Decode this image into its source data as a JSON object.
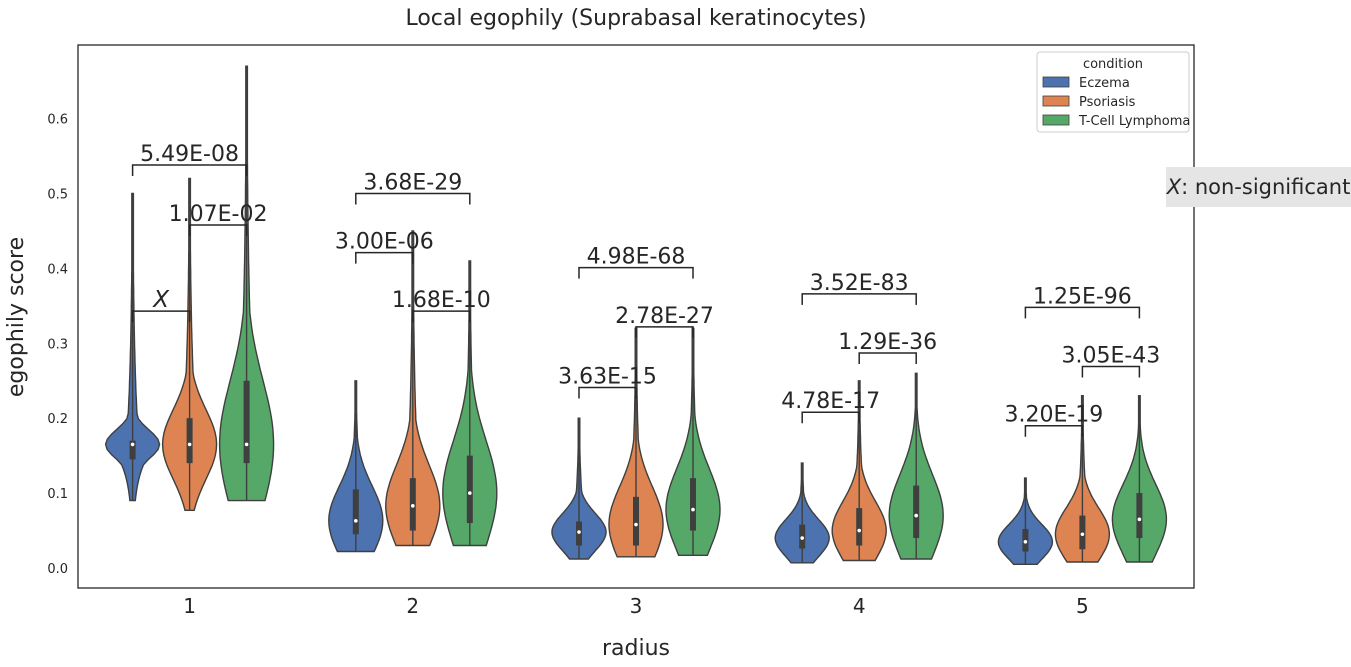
{
  "note": {
    "symbol": "X",
    "text": ": non-significant"
  },
  "chart_data": {
    "type": "violin",
    "title": "Local egophily (Suprabasal keratinocytes)",
    "xlabel": "radius",
    "ylabel": "egophily score",
    "categories": [
      "1",
      "2",
      "3",
      "4",
      "5"
    ],
    "ylim": [
      -0.03,
      0.7
    ],
    "yticks": [
      "0.0",
      "0.1",
      "0.2",
      "0.3",
      "0.4",
      "0.5",
      "0.6"
    ],
    "grid": false,
    "legend": {
      "title": "condition",
      "placement": "top-right"
    },
    "series": [
      {
        "name": "Eczema",
        "color": "#4c72b0",
        "stats": [
          {
            "min": 0.09,
            "q1": 0.145,
            "median": 0.165,
            "q3": 0.17,
            "max": 0.5
          },
          {
            "min": 0.022,
            "q1": 0.045,
            "median": 0.063,
            "q3": 0.105,
            "max": 0.25
          },
          {
            "min": 0.012,
            "q1": 0.03,
            "median": 0.048,
            "q3": 0.062,
            "max": 0.2
          },
          {
            "min": 0.007,
            "q1": 0.026,
            "median": 0.04,
            "q3": 0.058,
            "max": 0.14
          },
          {
            "min": 0.005,
            "q1": 0.022,
            "median": 0.035,
            "q3": 0.052,
            "max": 0.12
          }
        ]
      },
      {
        "name": "Psoriasis",
        "color": "#dd8452",
        "stats": [
          {
            "min": 0.077,
            "q1": 0.14,
            "median": 0.165,
            "q3": 0.2,
            "max": 0.52
          },
          {
            "min": 0.03,
            "q1": 0.05,
            "median": 0.083,
            "q3": 0.12,
            "max": 0.45
          },
          {
            "min": 0.015,
            "q1": 0.03,
            "median": 0.058,
            "q3": 0.095,
            "max": 0.32
          },
          {
            "min": 0.01,
            "q1": 0.03,
            "median": 0.05,
            "q3": 0.08,
            "max": 0.25
          },
          {
            "min": 0.008,
            "q1": 0.025,
            "median": 0.045,
            "q3": 0.07,
            "max": 0.23
          }
        ]
      },
      {
        "name": "T-Cell Lymphoma",
        "color": "#55a868",
        "stats": [
          {
            "min": 0.09,
            "q1": 0.14,
            "median": 0.165,
            "q3": 0.25,
            "max": 0.67
          },
          {
            "min": 0.03,
            "q1": 0.06,
            "median": 0.1,
            "q3": 0.15,
            "max": 0.41
          },
          {
            "min": 0.017,
            "q1": 0.05,
            "median": 0.078,
            "q3": 0.12,
            "max": 0.32
          },
          {
            "min": 0.012,
            "q1": 0.04,
            "median": 0.07,
            "q3": 0.11,
            "max": 0.26
          },
          {
            "min": 0.008,
            "q1": 0.04,
            "median": 0.065,
            "q3": 0.1,
            "max": 0.23
          }
        ]
      }
    ],
    "comparisons": [
      {
        "radius": "1",
        "from": 0,
        "to": 1,
        "label": "X",
        "y": 0.343
      },
      {
        "radius": "1",
        "from": 1,
        "to": 2,
        "label": "1.07E-02",
        "y": 0.458
      },
      {
        "radius": "1",
        "from": 0,
        "to": 2,
        "label": "5.49E-08",
        "y": 0.538
      },
      {
        "radius": "2",
        "from": 0,
        "to": 1,
        "label": "3.00E-06",
        "y": 0.421
      },
      {
        "radius": "2",
        "from": 1,
        "to": 2,
        "label": "1.68E-10",
        "y": 0.343
      },
      {
        "radius": "2",
        "from": 0,
        "to": 2,
        "label": "3.68E-29",
        "y": 0.5
      },
      {
        "radius": "3",
        "from": 0,
        "to": 1,
        "label": "3.63E-15",
        "y": 0.241
      },
      {
        "radius": "3",
        "from": 1,
        "to": 2,
        "label": "2.78E-27",
        "y": 0.322
      },
      {
        "radius": "3",
        "from": 0,
        "to": 2,
        "label": "4.98E-68",
        "y": 0.401
      },
      {
        "radius": "4",
        "from": 0,
        "to": 1,
        "label": "4.78E-17",
        "y": 0.208
      },
      {
        "radius": "4",
        "from": 1,
        "to": 2,
        "label": "1.29E-36",
        "y": 0.287
      },
      {
        "radius": "4",
        "from": 0,
        "to": 2,
        "label": "3.52E-83",
        "y": 0.366
      },
      {
        "radius": "5",
        "from": 0,
        "to": 1,
        "label": "3.20E-19",
        "y": 0.19
      },
      {
        "radius": "5",
        "from": 1,
        "to": 2,
        "label": "3.05E-43",
        "y": 0.269
      },
      {
        "radius": "5",
        "from": 0,
        "to": 2,
        "label": "1.25E-96",
        "y": 0.348
      }
    ]
  }
}
